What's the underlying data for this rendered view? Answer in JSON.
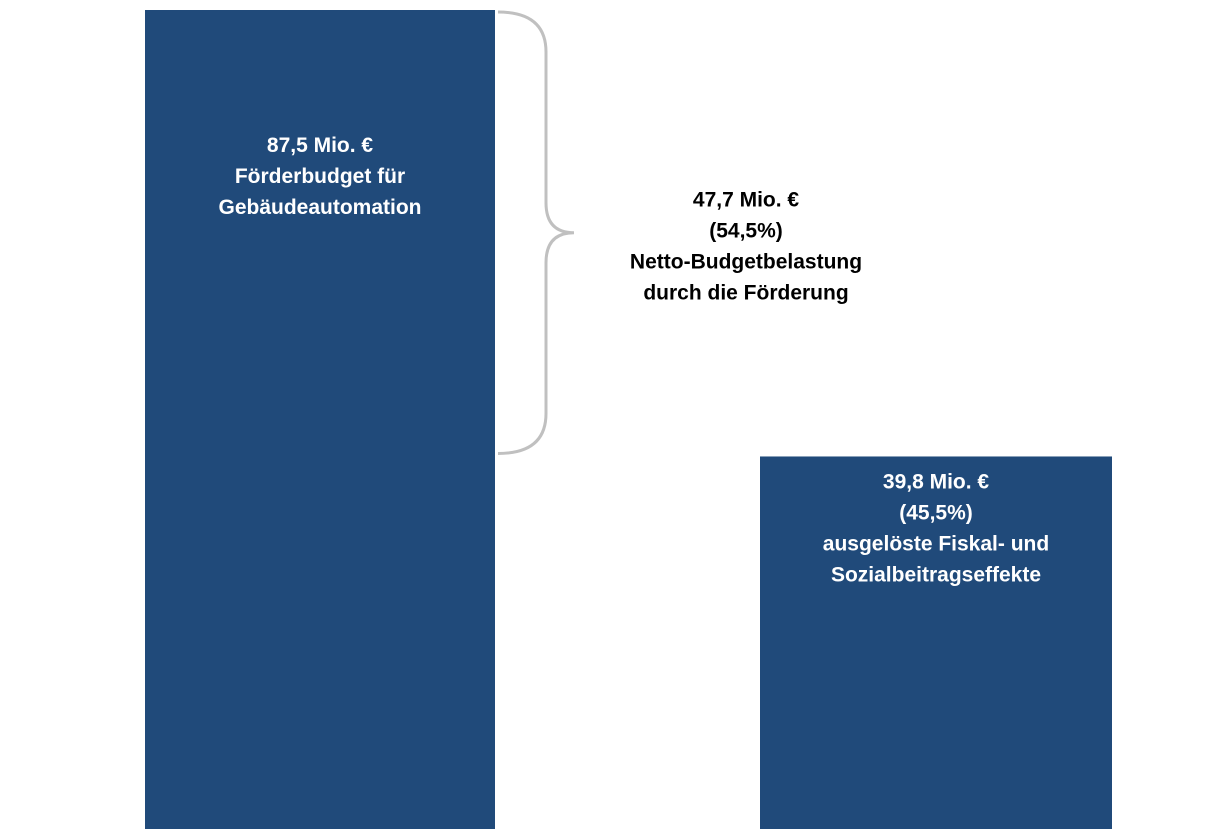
{
  "chart_data": {
    "type": "bar",
    "categories": [
      "Förderbudget für Gebäudeautomation",
      "ausgelöste Fiskal- und Sozialbeitragseffekte"
    ],
    "values": [
      87.5,
      39.8
    ],
    "unit": "Mio. €",
    "colors": {
      "bar": "#204a7a",
      "bar_text": "#ffffff",
      "annotation_text": "#000000",
      "brace": "#c0c0c0"
    },
    "bar_labels": [
      [
        "87,5 Mio. €",
        "Förderbudget für",
        "Gebäudeautomation"
      ],
      [
        "39,8 Mio. €",
        "(45,5%)",
        "ausgelöste Fiskal- und",
        "Sozialbeitragseffekte"
      ]
    ],
    "annotation": {
      "value": 47.7,
      "share_percent": 54.5,
      "lines": [
        "47,7 Mio. €",
        "(54,5%)",
        "Netto-Budgetbelastung",
        "durch die Förderung"
      ]
    }
  }
}
